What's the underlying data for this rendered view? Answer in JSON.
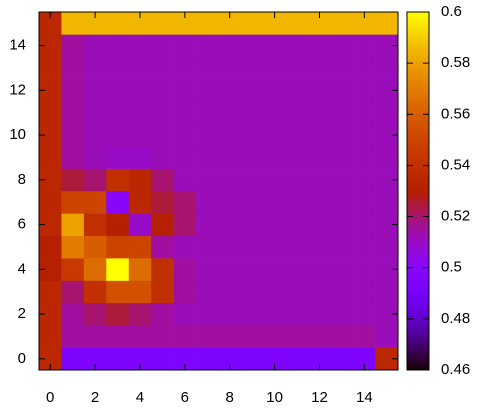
{
  "chart_data": {
    "type": "heatmap",
    "x": [
      0,
      1,
      2,
      3,
      4,
      5,
      6,
      7,
      8,
      9,
      10,
      11,
      12,
      13,
      14,
      15
    ],
    "y": [
      0,
      1,
      2,
      3,
      4,
      5,
      6,
      7,
      8,
      9,
      10,
      11,
      12,
      13,
      14,
      15
    ],
    "values": [
      [
        0.535,
        0.495,
        0.495,
        0.495,
        0.495,
        0.495,
        0.495,
        0.495,
        0.495,
        0.495,
        0.495,
        0.495,
        0.495,
        0.495,
        0.495,
        0.535
      ],
      [
        0.535,
        0.515,
        0.515,
        0.515,
        0.515,
        0.515,
        0.515,
        0.515,
        0.515,
        0.515,
        0.515,
        0.515,
        0.515,
        0.515,
        0.515,
        0.512
      ],
      [
        0.535,
        0.515,
        0.52,
        0.525,
        0.52,
        0.515,
        0.512,
        0.512,
        0.512,
        0.512,
        0.512,
        0.512,
        0.512,
        0.512,
        0.512,
        0.512
      ],
      [
        0.535,
        0.52,
        0.54,
        0.555,
        0.555,
        0.54,
        0.515,
        0.512,
        0.512,
        0.512,
        0.512,
        0.512,
        0.512,
        0.512,
        0.512,
        0.512
      ],
      [
        0.53,
        0.545,
        0.565,
        0.6,
        0.565,
        0.54,
        0.515,
        0.512,
        0.512,
        0.512,
        0.512,
        0.512,
        0.512,
        0.512,
        0.512,
        0.512
      ],
      [
        0.53,
        0.57,
        0.56,
        0.55,
        0.55,
        0.515,
        0.512,
        0.512,
        0.512,
        0.512,
        0.512,
        0.512,
        0.512,
        0.512,
        0.512,
        0.512
      ],
      [
        0.535,
        0.58,
        0.54,
        0.53,
        0.51,
        0.53,
        0.52,
        0.512,
        0.512,
        0.512,
        0.512,
        0.512,
        0.512,
        0.512,
        0.512,
        0.512
      ],
      [
        0.535,
        0.55,
        0.55,
        0.5,
        0.535,
        0.525,
        0.52,
        0.512,
        0.512,
        0.512,
        0.512,
        0.512,
        0.512,
        0.512,
        0.512,
        0.512
      ],
      [
        0.535,
        0.525,
        0.52,
        0.54,
        0.535,
        0.52,
        0.512,
        0.512,
        0.512,
        0.512,
        0.512,
        0.512,
        0.512,
        0.512,
        0.512,
        0.512
      ],
      [
        0.535,
        0.515,
        0.512,
        0.51,
        0.51,
        0.512,
        0.512,
        0.512,
        0.512,
        0.512,
        0.512,
        0.512,
        0.512,
        0.512,
        0.512,
        0.512
      ],
      [
        0.535,
        0.515,
        0.512,
        0.512,
        0.512,
        0.512,
        0.512,
        0.512,
        0.512,
        0.512,
        0.512,
        0.512,
        0.512,
        0.512,
        0.512,
        0.512
      ],
      [
        0.535,
        0.515,
        0.512,
        0.512,
        0.512,
        0.512,
        0.512,
        0.512,
        0.512,
        0.512,
        0.512,
        0.512,
        0.512,
        0.512,
        0.512,
        0.512
      ],
      [
        0.535,
        0.515,
        0.512,
        0.512,
        0.512,
        0.512,
        0.512,
        0.512,
        0.512,
        0.512,
        0.512,
        0.512,
        0.512,
        0.512,
        0.512,
        0.512
      ],
      [
        0.535,
        0.515,
        0.512,
        0.512,
        0.512,
        0.512,
        0.512,
        0.512,
        0.512,
        0.512,
        0.512,
        0.512,
        0.512,
        0.512,
        0.512,
        0.512
      ],
      [
        0.535,
        0.515,
        0.512,
        0.512,
        0.512,
        0.512,
        0.512,
        0.512,
        0.512,
        0.512,
        0.512,
        0.512,
        0.512,
        0.512,
        0.512,
        0.512
      ],
      [
        0.535,
        0.585,
        0.585,
        0.585,
        0.585,
        0.585,
        0.585,
        0.585,
        0.585,
        0.585,
        0.585,
        0.585,
        0.585,
        0.585,
        0.585,
        0.585
      ]
    ],
    "xlim": [
      -0.5,
      15.5
    ],
    "xticks": [
      0,
      2,
      4,
      6,
      8,
      10,
      12,
      14
    ],
    "ylim": [
      -0.5,
      15.5
    ],
    "yticks": [
      0,
      2,
      4,
      6,
      8,
      10,
      12,
      14
    ],
    "cblim": [
      0.46,
      0.6
    ],
    "cbticks": [
      0.46,
      0.48,
      0.5,
      0.52,
      0.54,
      0.56,
      0.58,
      0.6
    ],
    "palette": "gnuplot-rgbformulae-7-5-15"
  }
}
